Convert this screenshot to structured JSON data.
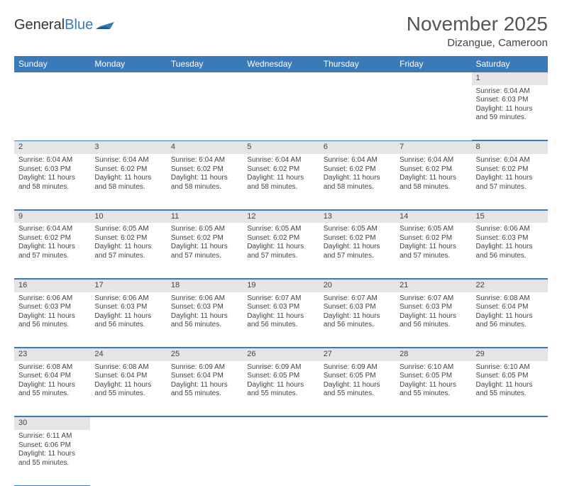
{
  "brand": {
    "part1": "General",
    "part2": "Blue"
  },
  "title": "November 2025",
  "location": "Dizangue, Cameroon",
  "colors": {
    "header_bg": "#3a7ab8",
    "header_fg": "#ffffff",
    "daynum_bg": "#e5e5e5",
    "rule": "#3a7ab8",
    "text": "#444444"
  },
  "weekdays": [
    "Sunday",
    "Monday",
    "Tuesday",
    "Wednesday",
    "Thursday",
    "Friday",
    "Saturday"
  ],
  "weeks": [
    [
      null,
      null,
      null,
      null,
      null,
      null,
      {
        "n": "1",
        "sr": "Sunrise: 6:04 AM",
        "ss": "Sunset: 6:03 PM",
        "dl": "Daylight: 11 hours and 59 minutes."
      }
    ],
    [
      {
        "n": "2",
        "sr": "Sunrise: 6:04 AM",
        "ss": "Sunset: 6:03 PM",
        "dl": "Daylight: 11 hours and 58 minutes."
      },
      {
        "n": "3",
        "sr": "Sunrise: 6:04 AM",
        "ss": "Sunset: 6:02 PM",
        "dl": "Daylight: 11 hours and 58 minutes."
      },
      {
        "n": "4",
        "sr": "Sunrise: 6:04 AM",
        "ss": "Sunset: 6:02 PM",
        "dl": "Daylight: 11 hours and 58 minutes."
      },
      {
        "n": "5",
        "sr": "Sunrise: 6:04 AM",
        "ss": "Sunset: 6:02 PM",
        "dl": "Daylight: 11 hours and 58 minutes."
      },
      {
        "n": "6",
        "sr": "Sunrise: 6:04 AM",
        "ss": "Sunset: 6:02 PM",
        "dl": "Daylight: 11 hours and 58 minutes."
      },
      {
        "n": "7",
        "sr": "Sunrise: 6:04 AM",
        "ss": "Sunset: 6:02 PM",
        "dl": "Daylight: 11 hours and 58 minutes."
      },
      {
        "n": "8",
        "sr": "Sunrise: 6:04 AM",
        "ss": "Sunset: 6:02 PM",
        "dl": "Daylight: 11 hours and 57 minutes."
      }
    ],
    [
      {
        "n": "9",
        "sr": "Sunrise: 6:04 AM",
        "ss": "Sunset: 6:02 PM",
        "dl": "Daylight: 11 hours and 57 minutes."
      },
      {
        "n": "10",
        "sr": "Sunrise: 6:05 AM",
        "ss": "Sunset: 6:02 PM",
        "dl": "Daylight: 11 hours and 57 minutes."
      },
      {
        "n": "11",
        "sr": "Sunrise: 6:05 AM",
        "ss": "Sunset: 6:02 PM",
        "dl": "Daylight: 11 hours and 57 minutes."
      },
      {
        "n": "12",
        "sr": "Sunrise: 6:05 AM",
        "ss": "Sunset: 6:02 PM",
        "dl": "Daylight: 11 hours and 57 minutes."
      },
      {
        "n": "13",
        "sr": "Sunrise: 6:05 AM",
        "ss": "Sunset: 6:02 PM",
        "dl": "Daylight: 11 hours and 57 minutes."
      },
      {
        "n": "14",
        "sr": "Sunrise: 6:05 AM",
        "ss": "Sunset: 6:02 PM",
        "dl": "Daylight: 11 hours and 57 minutes."
      },
      {
        "n": "15",
        "sr": "Sunrise: 6:06 AM",
        "ss": "Sunset: 6:03 PM",
        "dl": "Daylight: 11 hours and 56 minutes."
      }
    ],
    [
      {
        "n": "16",
        "sr": "Sunrise: 6:06 AM",
        "ss": "Sunset: 6:03 PM",
        "dl": "Daylight: 11 hours and 56 minutes."
      },
      {
        "n": "17",
        "sr": "Sunrise: 6:06 AM",
        "ss": "Sunset: 6:03 PM",
        "dl": "Daylight: 11 hours and 56 minutes."
      },
      {
        "n": "18",
        "sr": "Sunrise: 6:06 AM",
        "ss": "Sunset: 6:03 PM",
        "dl": "Daylight: 11 hours and 56 minutes."
      },
      {
        "n": "19",
        "sr": "Sunrise: 6:07 AM",
        "ss": "Sunset: 6:03 PM",
        "dl": "Daylight: 11 hours and 56 minutes."
      },
      {
        "n": "20",
        "sr": "Sunrise: 6:07 AM",
        "ss": "Sunset: 6:03 PM",
        "dl": "Daylight: 11 hours and 56 minutes."
      },
      {
        "n": "21",
        "sr": "Sunrise: 6:07 AM",
        "ss": "Sunset: 6:03 PM",
        "dl": "Daylight: 11 hours and 56 minutes."
      },
      {
        "n": "22",
        "sr": "Sunrise: 6:08 AM",
        "ss": "Sunset: 6:04 PM",
        "dl": "Daylight: 11 hours and 56 minutes."
      }
    ],
    [
      {
        "n": "23",
        "sr": "Sunrise: 6:08 AM",
        "ss": "Sunset: 6:04 PM",
        "dl": "Daylight: 11 hours and 55 minutes."
      },
      {
        "n": "24",
        "sr": "Sunrise: 6:08 AM",
        "ss": "Sunset: 6:04 PM",
        "dl": "Daylight: 11 hours and 55 minutes."
      },
      {
        "n": "25",
        "sr": "Sunrise: 6:09 AM",
        "ss": "Sunset: 6:04 PM",
        "dl": "Daylight: 11 hours and 55 minutes."
      },
      {
        "n": "26",
        "sr": "Sunrise: 6:09 AM",
        "ss": "Sunset: 6:05 PM",
        "dl": "Daylight: 11 hours and 55 minutes."
      },
      {
        "n": "27",
        "sr": "Sunrise: 6:09 AM",
        "ss": "Sunset: 6:05 PM",
        "dl": "Daylight: 11 hours and 55 minutes."
      },
      {
        "n": "28",
        "sr": "Sunrise: 6:10 AM",
        "ss": "Sunset: 6:05 PM",
        "dl": "Daylight: 11 hours and 55 minutes."
      },
      {
        "n": "29",
        "sr": "Sunrise: 6:10 AM",
        "ss": "Sunset: 6:05 PM",
        "dl": "Daylight: 11 hours and 55 minutes."
      }
    ],
    [
      {
        "n": "30",
        "sr": "Sunrise: 6:11 AM",
        "ss": "Sunset: 6:06 PM",
        "dl": "Daylight: 11 hours and 55 minutes."
      },
      null,
      null,
      null,
      null,
      null,
      null
    ]
  ]
}
